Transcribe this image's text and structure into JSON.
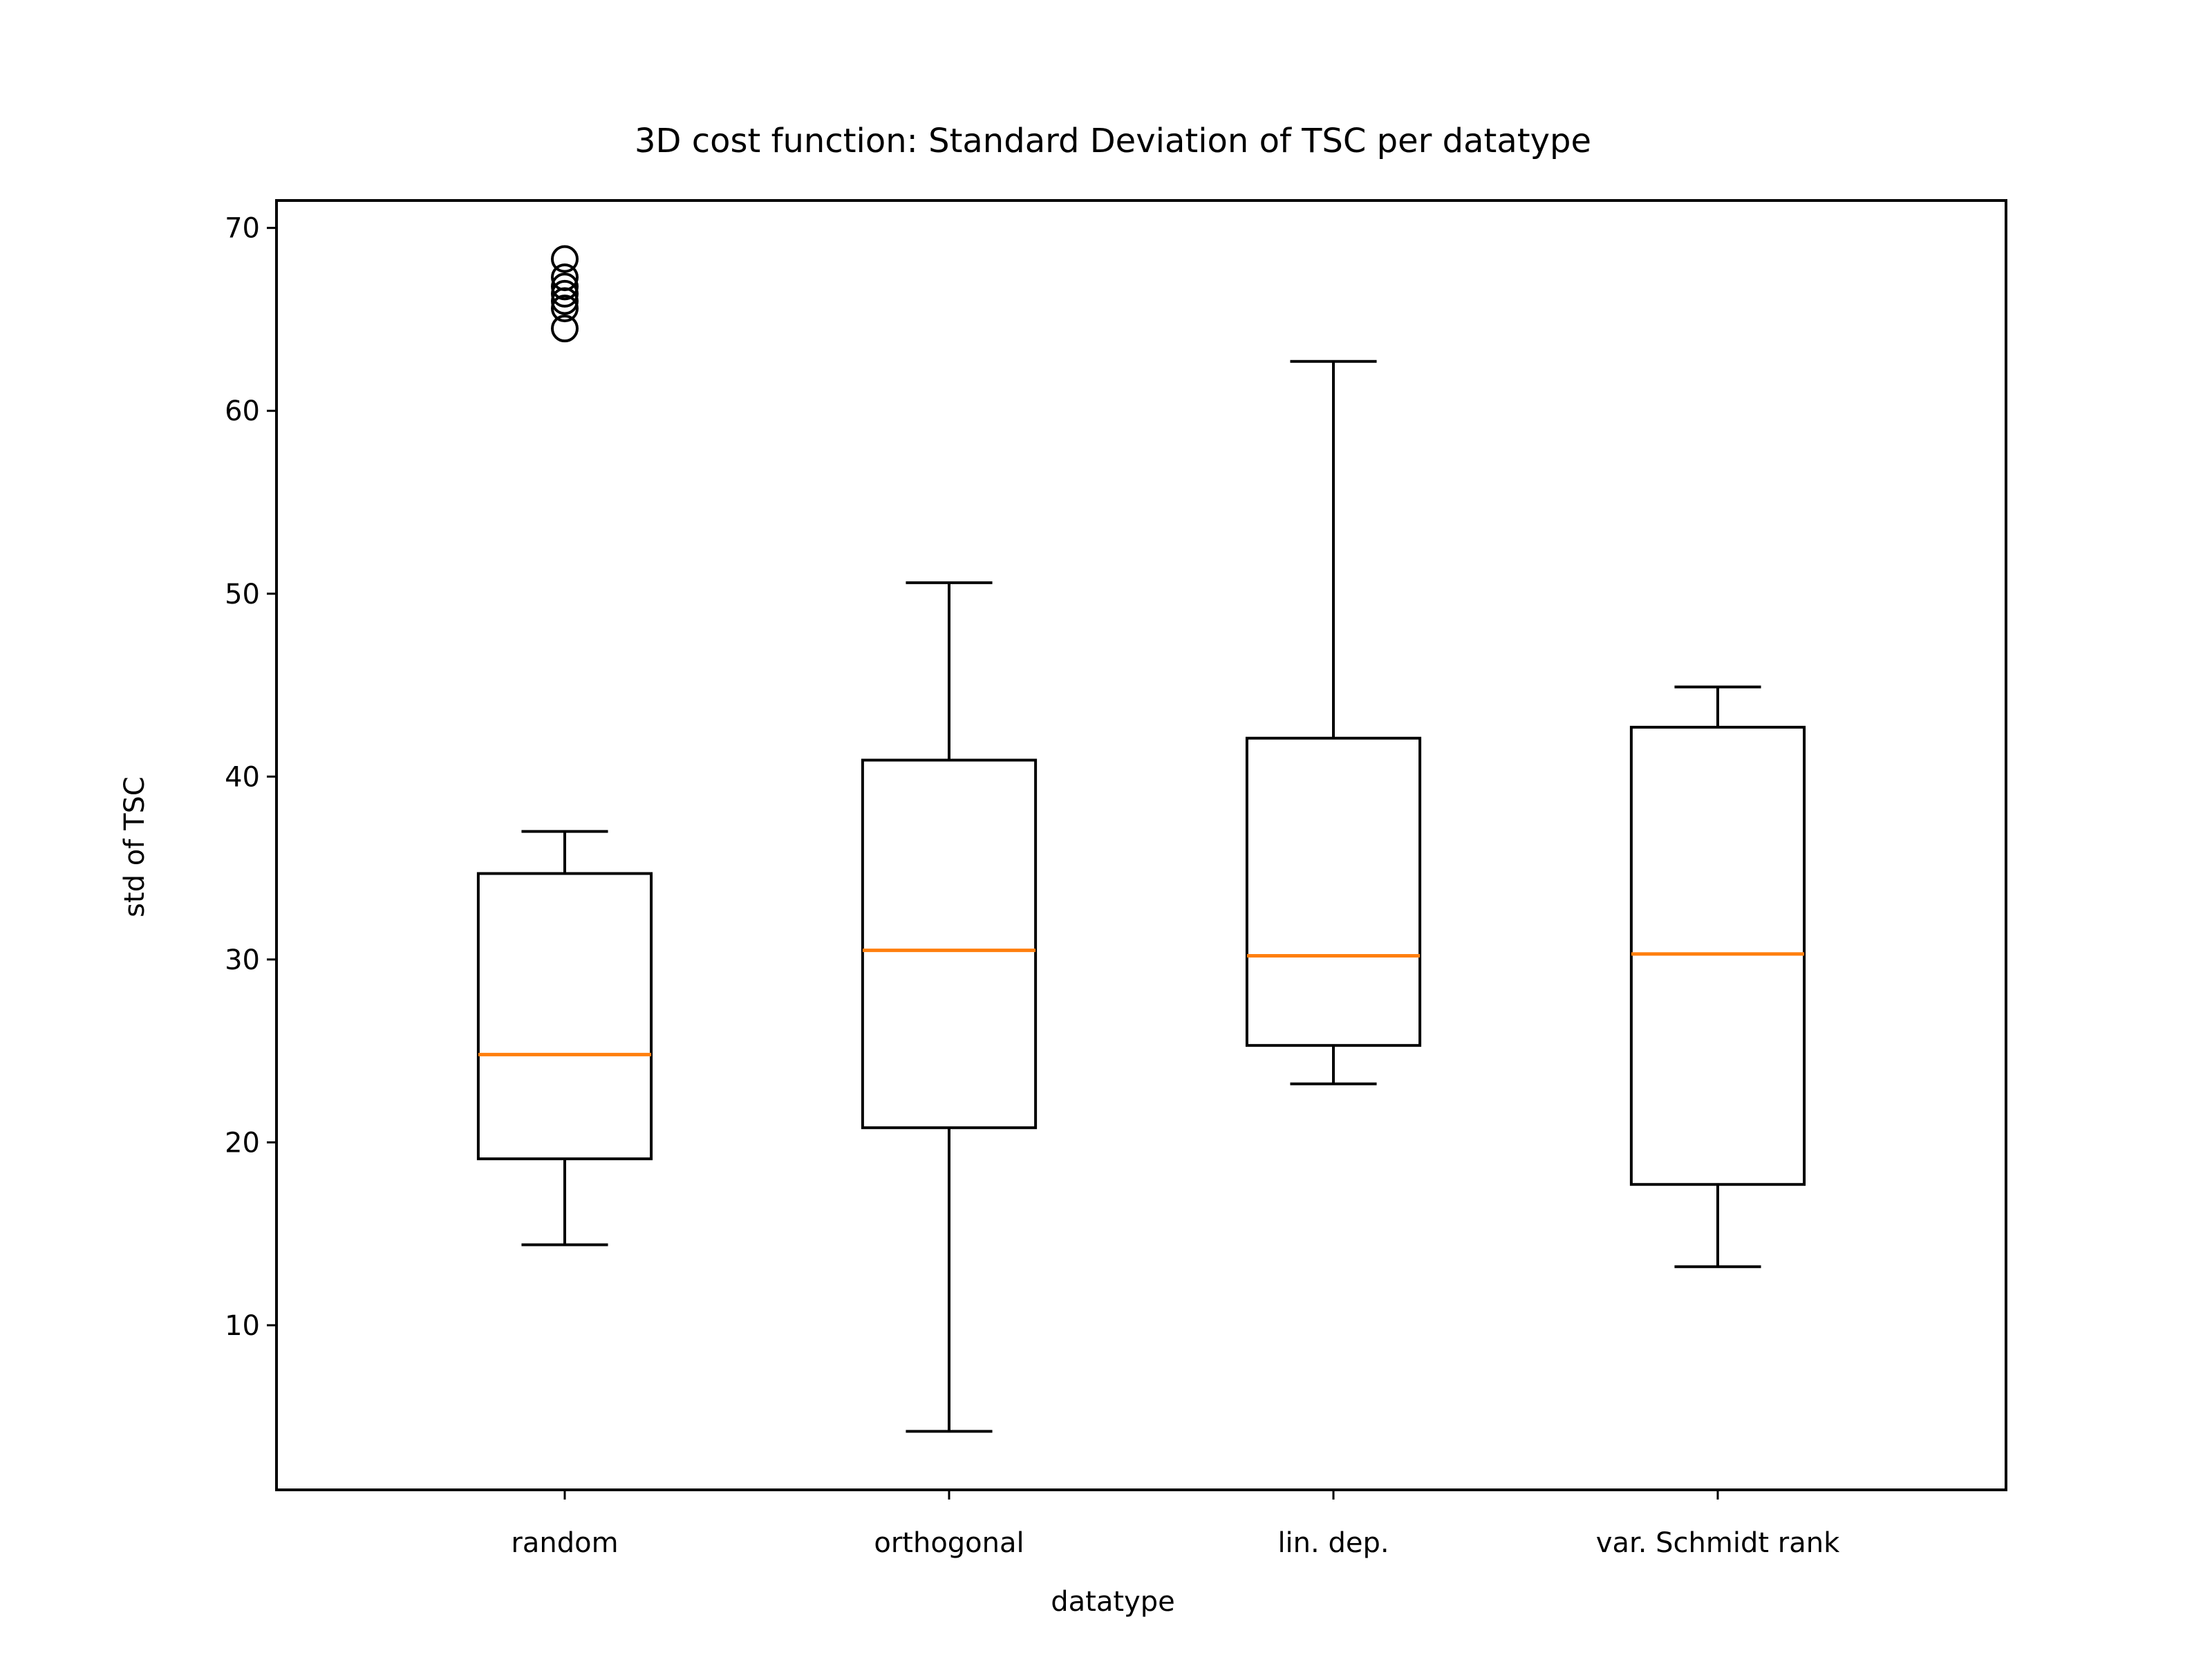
{
  "chart_data": {
    "type": "box",
    "title": "3D cost function: Standard Deviation of TSC per datatype",
    "xlabel": "datatype",
    "ylabel": "std of TSC",
    "categories": [
      "random",
      "orthogonal",
      "lin. dep.",
      "var. Schmidt rank"
    ],
    "ylim": [
      1,
      71.5
    ],
    "yticks": [
      10,
      20,
      30,
      40,
      50,
      60,
      70
    ],
    "grid": false,
    "legend": "none",
    "boxes": [
      {
        "category": "random",
        "whislo": 14.4,
        "q1": 19.1,
        "median": 24.8,
        "q3": 34.7,
        "whishi": 37.0,
        "fliers": [
          64.5,
          65.6,
          66.0,
          66.4,
          66.8,
          67.3,
          68.3
        ]
      },
      {
        "category": "orthogonal",
        "whislo": 4.2,
        "q1": 20.8,
        "median": 30.5,
        "q3": 40.9,
        "whishi": 50.6,
        "fliers": []
      },
      {
        "category": "lin. dep.",
        "whislo": 23.2,
        "q1": 25.3,
        "median": 30.2,
        "q3": 42.1,
        "whishi": 62.7,
        "fliers": []
      },
      {
        "category": "var. Schmidt rank",
        "whislo": 13.2,
        "q1": 17.7,
        "median": 30.3,
        "q3": 42.7,
        "whishi": 44.9,
        "fliers": []
      }
    ],
    "colors": {
      "box": "#000000",
      "median": "#ff7f0e",
      "flier": "#000000"
    }
  }
}
